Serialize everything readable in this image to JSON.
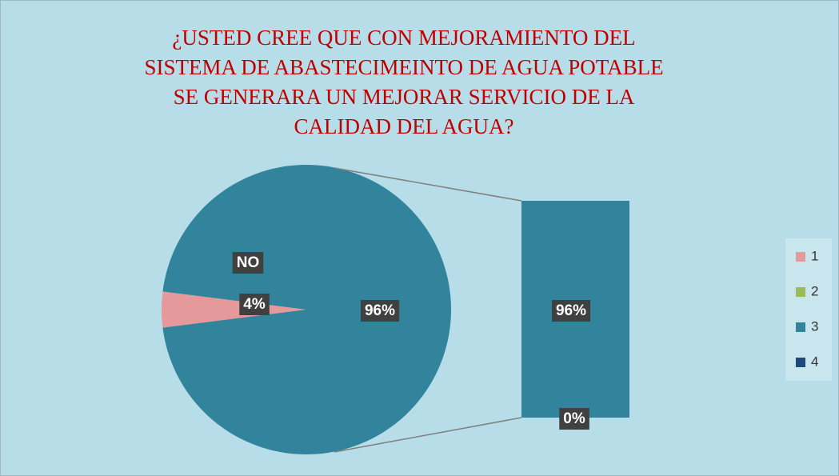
{
  "chart_data": {
    "type": "pie-of-bar",
    "title": [
      "¿USTED CREE QUE CON MEJORAMIENTO DEL",
      "SISTEMA DE ABASTECIMEINTO DE AGUA POTABLE",
      "SE GENERARA UN MEJORAR  SERVICIO DE LA",
      "CALIDAD DEL AGUA?"
    ],
    "categories": [
      "1",
      "2",
      "3",
      "4"
    ],
    "values": [
      4,
      0,
      96,
      0
    ],
    "value_labels": [
      "4%",
      null,
      "96%",
      "0%"
    ],
    "colors": [
      "#e6999a",
      "#9bbb59",
      "#31849b",
      "#1f497d"
    ],
    "annotation": "NO",
    "split_last": 2,
    "legend": "right"
  }
}
